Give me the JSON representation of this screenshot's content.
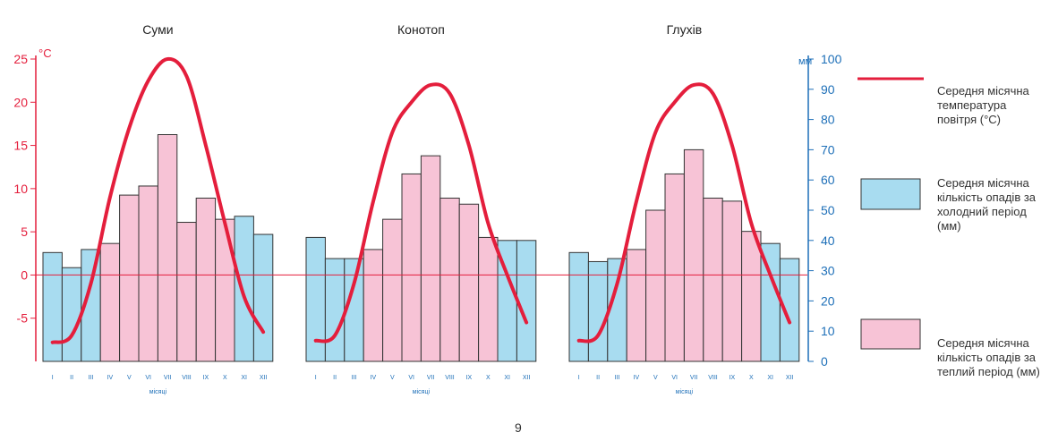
{
  "chart_data": {
    "type": "bar",
    "left_axis": {
      "unit": "°C",
      "ticks": [
        "25",
        "20",
        "15",
        "10",
        "5",
        "0",
        "-5"
      ],
      "min": -10,
      "max": 25,
      "color": "#e01a3a"
    },
    "right_axis": {
      "unit": "мм",
      "ticks": [
        "100",
        "90",
        "80",
        "70",
        "60",
        "50",
        "40",
        "30",
        "20",
        "10",
        "0"
      ],
      "min": 0,
      "max": 100,
      "color": "#1d6fb8"
    },
    "month_labels": [
      "I",
      "II",
      "III",
      "IV",
      "V",
      "VI",
      "VII",
      "VIII",
      "IX",
      "X",
      "XI",
      "XII"
    ],
    "xlabel": "місяці",
    "warm_months": [
      3,
      4,
      5,
      6,
      7,
      8,
      9
    ],
    "colors": {
      "cold_bar": "#a8dcf0",
      "warm_bar": "#f7c3d6",
      "temp_line": "#e41e3c",
      "zero_line": "#e41e3c",
      "axis_blue": "#1d6fb8"
    },
    "panels": [
      {
        "title": "Суми",
        "precip_mm": [
          36,
          31,
          37,
          39,
          55,
          58,
          75,
          46,
          54,
          47,
          48,
          42
        ],
        "temp_c": [
          -7.8,
          -7,
          -1,
          9,
          17,
          22.5,
          25,
          23,
          15,
          6,
          -2.5,
          -6.6
        ]
      },
      {
        "title": "Конотоп",
        "precip_mm": [
          41,
          34,
          34,
          37,
          47,
          62,
          68,
          54,
          52,
          41,
          40,
          40
        ],
        "temp_c": [
          -7.6,
          -7,
          -1,
          8.5,
          16.5,
          20,
          22,
          21,
          15,
          6,
          0,
          -5.5
        ]
      },
      {
        "title": "Глухів",
        "precip_mm": [
          36,
          33,
          34,
          37,
          50,
          62,
          70,
          54,
          53,
          43,
          39,
          34
        ],
        "temp_c": [
          -7.6,
          -7,
          -1,
          8.5,
          16.5,
          20,
          22,
          21,
          15,
          6,
          0,
          -5.5
        ]
      }
    ]
  },
  "legend": {
    "temp_label": "Середня місячна температура повітря (°C)",
    "cold_label": "Середня місячна кількість опадів за холодний період (мм)",
    "warm_label": "Середня місячна кількість опадів за теплий період (мм)"
  },
  "page_number": "9"
}
